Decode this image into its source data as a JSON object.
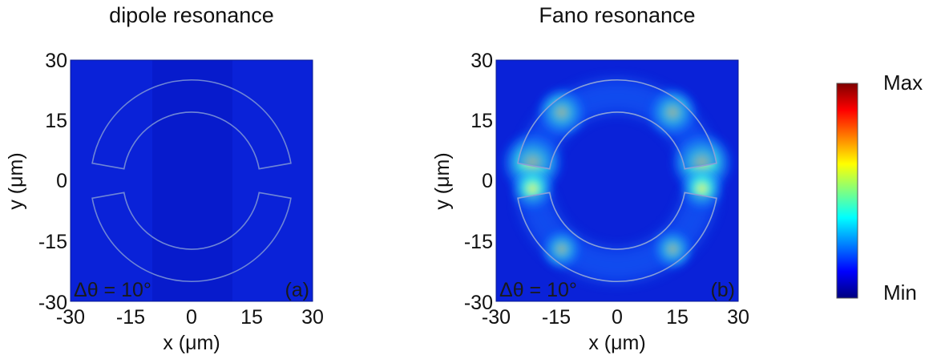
{
  "figure": {
    "colorbar": {
      "max_label": "Max",
      "min_label": "Min",
      "colormap": [
        "#00007f",
        "#0000ff",
        "#0080ff",
        "#00ffff",
        "#80ff80",
        "#ffff00",
        "#ff8000",
        "#ff0000",
        "#7f0000"
      ]
    }
  },
  "chart_data": [
    {
      "type": "heatmap",
      "title": "dipole resonance",
      "xlabel": "x (μm)",
      "ylabel": "y (μm)",
      "xlim": [
        -30,
        30
      ],
      "ylim": [
        -30,
        30
      ],
      "xticks": [
        "-30",
        "-15",
        "0",
        "15",
        "30"
      ],
      "yticks": [
        "30",
        "15",
        "0",
        "-15",
        "-30"
      ],
      "annotation": "Δθ = 10°",
      "panel_label": "(a)",
      "ring": {
        "outer_radius": 25,
        "inner_radius": 17,
        "gap_angle_deg": 10
      },
      "field_level": 0.05
    },
    {
      "type": "heatmap",
      "title": "Fano resonance",
      "xlabel": "x (μm)",
      "ylabel": "y (μm)",
      "xlim": [
        -30,
        30
      ],
      "ylim": [
        -30,
        30
      ],
      "xticks": [
        "-30",
        "-15",
        "0",
        "15",
        "30"
      ],
      "yticks": [
        "30",
        "15",
        "0",
        "-15",
        "-30"
      ],
      "annotation": "Δθ = 10°",
      "panel_label": "(b)",
      "ring": {
        "outer_radius": 25,
        "inner_radius": 17,
        "gap_angle_deg": 10
      },
      "field_level": 0.55
    }
  ]
}
